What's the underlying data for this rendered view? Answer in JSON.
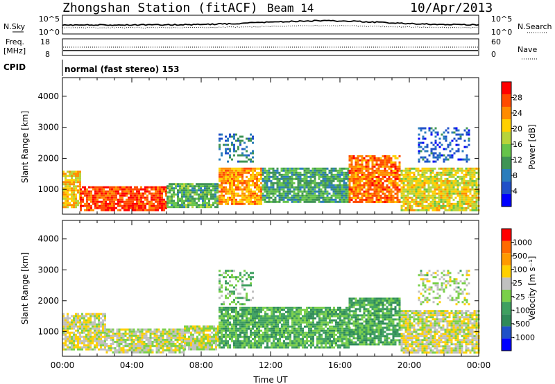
{
  "header": {
    "station": "Zhongshan Station (fitACF)",
    "beam": "Beam 14",
    "date": "10/Apr/2013"
  },
  "nsky": {
    "label": "N.Sky",
    "tick_top": "10^5",
    "tick_bottom": "10^0",
    "right_label": "N.Search",
    "right_tick_top": "10^5",
    "right_tick_bottom": "10^0"
  },
  "freq": {
    "label_line1": "Freq.",
    "label_line2": "[MHz]",
    "tick_top": "18",
    "tick_bottom": "8",
    "right_label": "Nave",
    "right_tick_top": "60",
    "right_tick_bottom": "0"
  },
  "cpid": {
    "label": "CPID",
    "mode": "normal (fast stereo) 153"
  },
  "chart_data": [
    {
      "type": "heatmap",
      "panel": "power",
      "ylabel": "Slant Range [km]",
      "ylim": [
        200,
        4600
      ],
      "yticks": [
        "1000",
        "2000",
        "3000",
        "4000"
      ],
      "xlim_hours": [
        0,
        24
      ],
      "colorbar": {
        "label": "Power [dB]",
        "ticks": [
          "28",
          "24",
          "20",
          "16",
          "12",
          "8",
          "4"
        ],
        "colors": [
          "#0000ff",
          "#1f50c8",
          "#2a7dbc",
          "#3f9455",
          "#66c44a",
          "#b7d43a",
          "#ffd000",
          "#ff8c00",
          "#ff4a00",
          "#ff0000"
        ],
        "range": [
          0,
          30
        ]
      },
      "echo_regions": [
        {
          "t": [
            0.0,
            1.0
          ],
          "r": [
            400,
            1600
          ],
          "v": 20
        },
        {
          "t": [
            1.0,
            6.0
          ],
          "r": [
            350,
            1100
          ],
          "v": 26
        },
        {
          "t": [
            6.0,
            9.0
          ],
          "r": [
            400,
            1200
          ],
          "v": 12
        },
        {
          "t": [
            9.0,
            11.5
          ],
          "r": [
            500,
            1700
          ],
          "v": 22
        },
        {
          "t": [
            11.5,
            16.5
          ],
          "r": [
            600,
            1700
          ],
          "v": 11
        },
        {
          "t": [
            16.5,
            19.5
          ],
          "r": [
            600,
            2100
          ],
          "v": 24
        },
        {
          "t": [
            19.5,
            24.0
          ],
          "r": [
            300,
            1700
          ],
          "v": 18
        },
        {
          "t": [
            9.0,
            11.0
          ],
          "r": [
            1900,
            2800
          ],
          "v": 8
        },
        {
          "t": [
            20.5,
            23.5
          ],
          "r": [
            1900,
            3000
          ],
          "v": 6
        }
      ]
    },
    {
      "type": "heatmap",
      "panel": "velocity",
      "ylabel": "Slant Range [km]",
      "ylim": [
        200,
        4600
      ],
      "yticks": [
        "1000",
        "2000",
        "3000",
        "4000"
      ],
      "xlabel": "Time UT",
      "xticks": [
        "00:00",
        "04:00",
        "08:00",
        "12:00",
        "16:00",
        "20:00",
        "00:00"
      ],
      "xlim_hours": [
        0,
        24
      ],
      "colorbar": {
        "label": "Velocity [m s⁻¹]",
        "ticks": [
          "1000",
          "500",
          "100",
          "25",
          "-25",
          "-100",
          "-500",
          "-1000"
        ],
        "colors": [
          "#0000ff",
          "#1f50c8",
          "#2f8a58",
          "#3fa060",
          "#7ad04a",
          "#c0c0c0",
          "#ffd000",
          "#ff9a00",
          "#ff6a00",
          "#ff0000"
        ],
        "range": [
          -1000,
          1000
        ]
      },
      "echo_regions": [
        {
          "t": [
            0.0,
            2.5
          ],
          "r": [
            400,
            1600
          ],
          "v": 150
        },
        {
          "t": [
            2.5,
            7.0
          ],
          "r": [
            350,
            1100
          ],
          "v": 80
        },
        {
          "t": [
            7.0,
            9.0
          ],
          "r": [
            400,
            1200
          ],
          "v": 50
        },
        {
          "t": [
            9.0,
            16.5
          ],
          "r": [
            500,
            1800
          ],
          "v": -250
        },
        {
          "t": [
            16.5,
            19.5
          ],
          "r": [
            600,
            2100
          ],
          "v": -300
        },
        {
          "t": [
            19.5,
            24.0
          ],
          "r": [
            300,
            1700
          ],
          "v": 120
        },
        {
          "t": [
            9.0,
            11.0
          ],
          "r": [
            1900,
            3000
          ],
          "v": -150
        },
        {
          "t": [
            20.5,
            23.5
          ],
          "r": [
            1900,
            3000
          ],
          "v": 40
        }
      ]
    }
  ]
}
